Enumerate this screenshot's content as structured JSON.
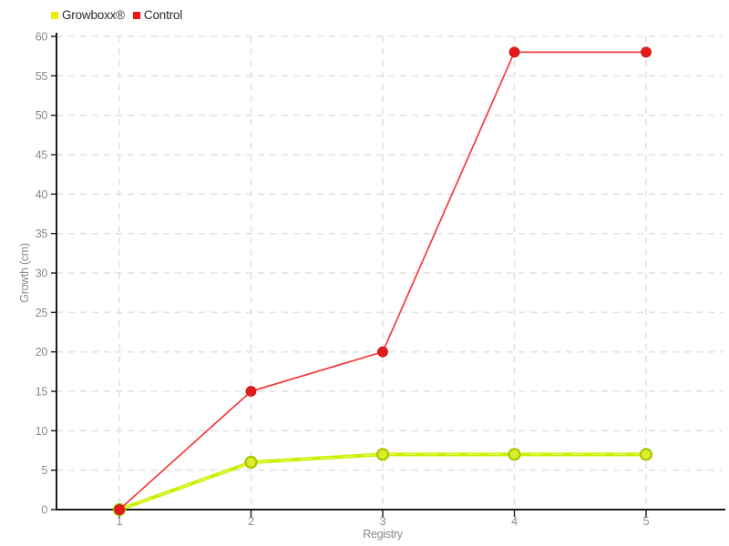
{
  "chart_data": {
    "type": "line",
    "x": [
      1,
      2,
      3,
      4,
      5
    ],
    "x_tick_labels": [
      "1",
      "2",
      "3",
      "4",
      "5"
    ],
    "series": [
      {
        "name": "Growboxx®",
        "values": [
          0,
          6,
          7,
          7,
          7
        ],
        "line_color": "#c9ef00",
        "line_highlight_color": "#eaff66",
        "line_width": 4,
        "marker_radius": 6,
        "marker_fill": "#dcec2a",
        "marker_stroke": "#a9c503",
        "marker_stroke_width": 2.2,
        "legend_color": "#eded00"
      },
      {
        "name": "Control",
        "values": [
          0,
          15,
          20,
          58,
          58
        ],
        "line_color": "#f23b3b",
        "line_highlight_color": "",
        "line_width": 1.7,
        "marker_radius": 5.4,
        "marker_fill": "#e31b1b",
        "marker_stroke": "#cc1414",
        "marker_stroke_width": 1,
        "legend_color": "#ee1515"
      }
    ],
    "title": "",
    "xlabel": "Registry",
    "ylabel": "Growth (cm)",
    "ylim": [
      0,
      60
    ],
    "ytick_step": 5,
    "grid": true,
    "legend_position": "top-left"
  }
}
